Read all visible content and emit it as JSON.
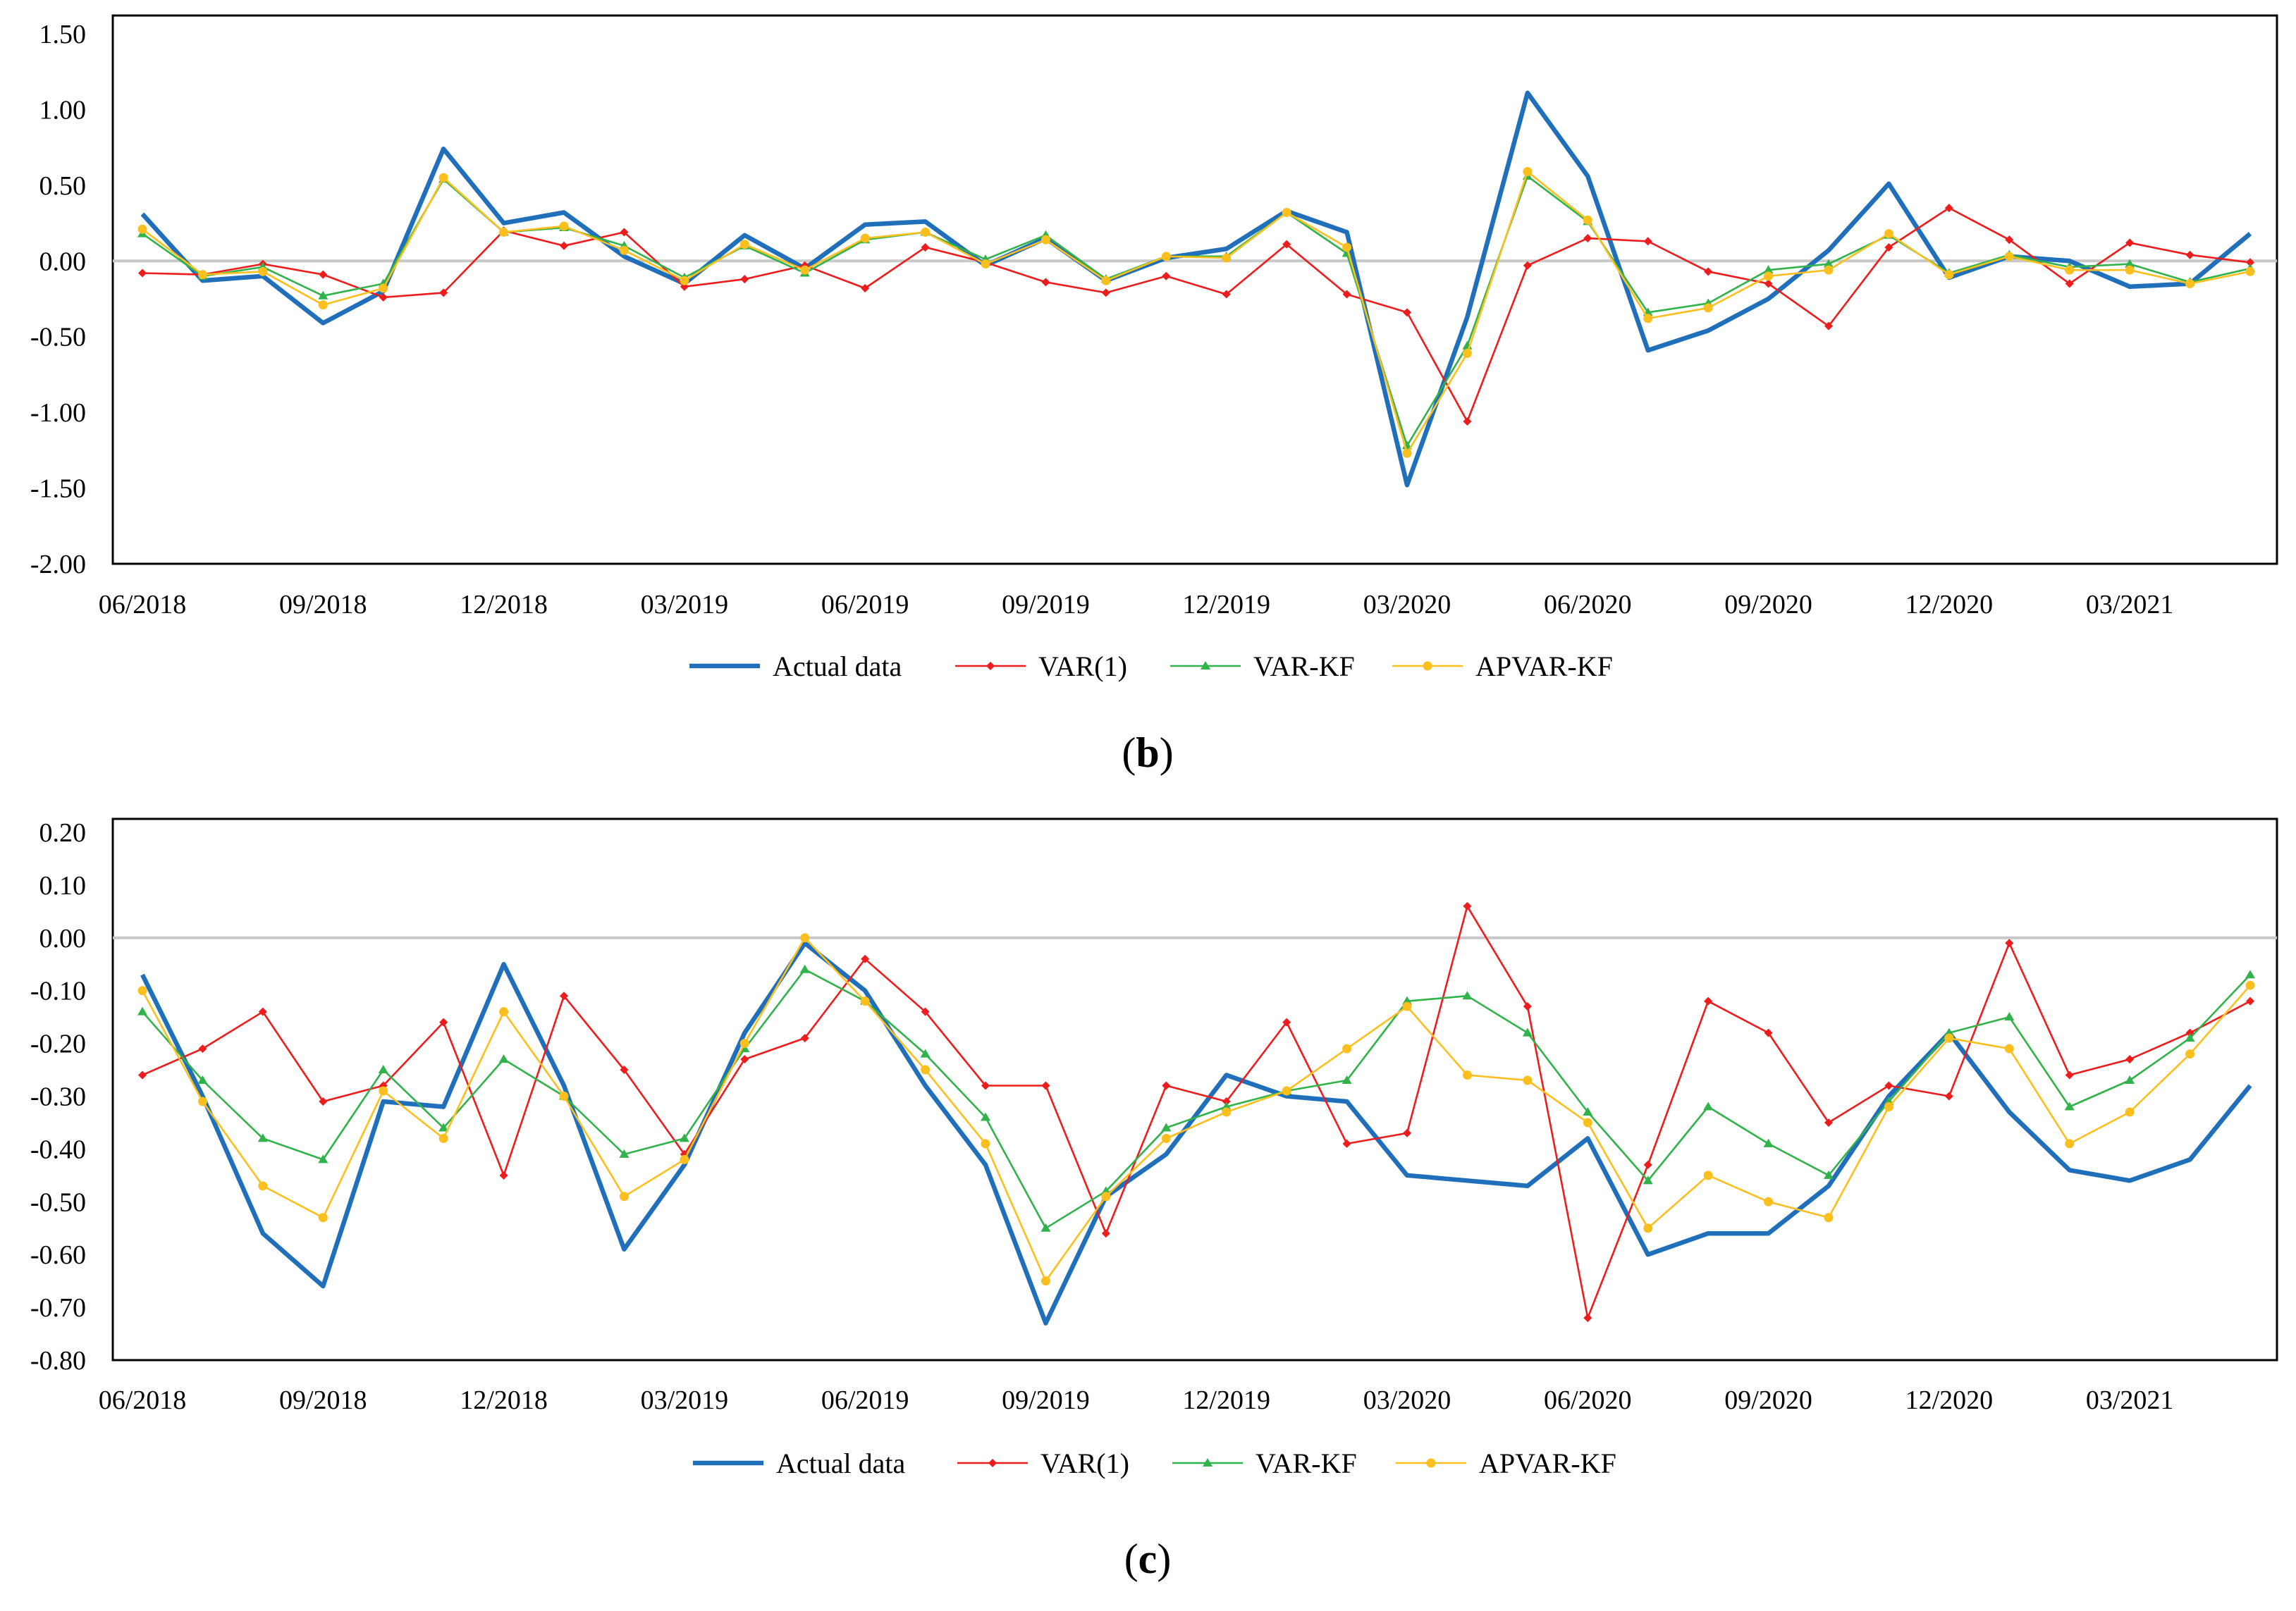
{
  "chart_data": [
    {
      "type": "line",
      "panel_label_open": "(",
      "panel_label_letter": "b",
      "panel_label_close": ")",
      "categories": [
        "06/2018",
        "07/2018",
        "08/2018",
        "09/2018",
        "10/2018",
        "11/2018",
        "12/2018",
        "01/2019",
        "02/2019",
        "03/2019",
        "04/2019",
        "05/2019",
        "06/2019",
        "07/2019",
        "08/2019",
        "09/2019",
        "10/2019",
        "11/2019",
        "12/2019",
        "01/2020",
        "02/2020",
        "03/2020",
        "04/2020",
        "05/2020",
        "06/2020",
        "07/2020",
        "08/2020",
        "09/2020",
        "10/2020",
        "11/2020",
        "12/2020",
        "01/2021",
        "02/2021",
        "03/2021",
        "04/2021",
        "05/2021"
      ],
      "x_tick_labels": [
        "06/2018",
        "09/2018",
        "12/2018",
        "03/2019",
        "06/2019",
        "09/2019",
        "12/2019",
        "03/2020",
        "06/2020",
        "09/2020",
        "12/2020",
        "03/2021"
      ],
      "y_tick_labels": [
        "1.50",
        "1.00",
        "0.50",
        "0.00",
        "-0.50",
        "-1.00",
        "-1.50",
        "-2.00"
      ],
      "ylim": [
        -2.0,
        1.5
      ],
      "legend_position": "bottom",
      "series": [
        {
          "name": "Actual data",
          "color": "#1f6fba",
          "marker": "none",
          "values": [
            0.31,
            -0.13,
            -0.1,
            -0.41,
            -0.2,
            0.74,
            0.25,
            0.32,
            0.03,
            -0.15,
            0.17,
            -0.05,
            0.24,
            0.26,
            -0.03,
            0.15,
            -0.13,
            0.02,
            0.08,
            0.33,
            0.19,
            -1.48,
            -0.37,
            1.11,
            0.56,
            -0.59,
            -0.46,
            -0.25,
            0.07,
            0.51,
            -0.11,
            0.03,
            0.0,
            -0.17,
            -0.15,
            0.18
          ]
        },
        {
          "name": "VAR(1)",
          "color": "#ee1c1c",
          "marker": "diamond",
          "values": [
            -0.08,
            -0.09,
            -0.02,
            -0.09,
            -0.24,
            -0.21,
            0.2,
            0.1,
            0.19,
            -0.17,
            -0.12,
            -0.03,
            -0.18,
            0.09,
            -0.01,
            -0.14,
            -0.21,
            -0.1,
            -0.22,
            0.11,
            -0.22,
            -0.34,
            -1.06,
            -0.03,
            0.15,
            0.13,
            -0.07,
            -0.15,
            -0.43,
            0.09,
            0.35,
            0.14,
            -0.15,
            0.12,
            0.04,
            -0.01
          ]
        },
        {
          "name": "VAR-KF",
          "color": "#2fb34a",
          "marker": "triangle",
          "values": [
            0.18,
            -0.1,
            -0.04,
            -0.23,
            -0.15,
            0.54,
            0.19,
            0.22,
            0.1,
            -0.11,
            0.1,
            -0.08,
            0.14,
            0.19,
            0.01,
            0.17,
            -0.12,
            0.03,
            0.03,
            0.32,
            0.05,
            -1.22,
            -0.56,
            0.56,
            0.26,
            -0.34,
            -0.28,
            -0.06,
            -0.02,
            0.17,
            -0.08,
            0.04,
            -0.04,
            -0.02,
            -0.14,
            -0.05
          ]
        },
        {
          "name": "APVAR-KF",
          "color": "#fcbf1e",
          "marker": "circle",
          "values": [
            0.21,
            -0.09,
            -0.07,
            -0.29,
            -0.18,
            0.55,
            0.19,
            0.23,
            0.07,
            -0.13,
            0.11,
            -0.06,
            0.15,
            0.19,
            -0.02,
            0.14,
            -0.13,
            0.03,
            0.02,
            0.32,
            0.09,
            -1.27,
            -0.61,
            0.59,
            0.27,
            -0.38,
            -0.31,
            -0.1,
            -0.06,
            0.18,
            -0.09,
            0.03,
            -0.06,
            -0.06,
            -0.15,
            -0.07
          ]
        }
      ]
    },
    {
      "type": "line",
      "panel_label_open": "(",
      "panel_label_letter": "c",
      "panel_label_close": ")",
      "categories": [
        "06/2018",
        "07/2018",
        "08/2018",
        "09/2018",
        "10/2018",
        "11/2018",
        "12/2018",
        "01/2019",
        "02/2019",
        "03/2019",
        "04/2019",
        "05/2019",
        "06/2019",
        "07/2019",
        "08/2019",
        "09/2019",
        "10/2019",
        "11/2019",
        "12/2019",
        "01/2020",
        "02/2020",
        "03/2020",
        "04/2020",
        "05/2020",
        "06/2020",
        "07/2020",
        "08/2020",
        "09/2020",
        "10/2020",
        "11/2020",
        "12/2020",
        "01/2021",
        "02/2021",
        "03/2021",
        "04/2021",
        "05/2021"
      ],
      "x_tick_labels": [
        "06/2018",
        "09/2018",
        "12/2018",
        "03/2019",
        "06/2019",
        "09/2019",
        "12/2019",
        "03/2020",
        "06/2020",
        "09/2020",
        "12/2020",
        "03/2021"
      ],
      "y_tick_labels": [
        "0.20",
        "0.10",
        "0.00",
        "-0.10",
        "-0.20",
        "-0.30",
        "-0.40",
        "-0.50",
        "-0.60",
        "-0.70",
        "-0.80"
      ],
      "ylim": [
        -0.8,
        0.2
      ],
      "legend_position": "bottom",
      "series": [
        {
          "name": "Actual data",
          "color": "#1f6fba",
          "marker": "none",
          "values": [
            -0.07,
            -0.3,
            -0.56,
            -0.66,
            -0.31,
            -0.32,
            -0.05,
            -0.28,
            -0.59,
            -0.43,
            -0.18,
            -0.01,
            -0.1,
            -0.28,
            -0.43,
            -0.73,
            -0.49,
            -0.41,
            -0.26,
            -0.3,
            -0.31,
            -0.45,
            -0.46,
            -0.47,
            -0.38,
            -0.6,
            -0.56,
            -0.56,
            -0.47,
            -0.3,
            -0.18,
            -0.33,
            -0.44,
            -0.46,
            -0.42,
            -0.28
          ]
        },
        {
          "name": "VAR(1)",
          "color": "#ee1c1c",
          "marker": "diamond",
          "values": [
            -0.26,
            -0.21,
            -0.14,
            -0.31,
            -0.28,
            -0.16,
            -0.45,
            -0.11,
            -0.25,
            -0.41,
            -0.23,
            -0.19,
            -0.04,
            -0.14,
            -0.28,
            -0.28,
            -0.56,
            -0.28,
            -0.31,
            -0.16,
            -0.39,
            -0.37,
            0.06,
            -0.13,
            -0.72,
            -0.43,
            -0.12,
            -0.18,
            -0.35,
            -0.28,
            -0.3,
            -0.01,
            -0.26,
            -0.23,
            -0.18,
            -0.12
          ]
        },
        {
          "name": "VAR-KF",
          "color": "#2fb34a",
          "marker": "triangle",
          "values": [
            -0.14,
            -0.27,
            -0.38,
            -0.42,
            -0.25,
            -0.36,
            -0.23,
            -0.3,
            -0.41,
            -0.38,
            -0.21,
            -0.06,
            -0.12,
            -0.22,
            -0.34,
            -0.55,
            -0.48,
            -0.36,
            -0.32,
            -0.29,
            -0.27,
            -0.12,
            -0.11,
            -0.18,
            -0.33,
            -0.46,
            -0.32,
            -0.39,
            -0.45,
            -0.31,
            -0.18,
            -0.15,
            -0.32,
            -0.27,
            -0.19,
            -0.07
          ]
        },
        {
          "name": "APVAR-KF",
          "color": "#fcbf1e",
          "marker": "circle",
          "values": [
            -0.1,
            -0.31,
            -0.47,
            -0.53,
            -0.29,
            -0.38,
            -0.14,
            -0.3,
            -0.49,
            -0.42,
            -0.2,
            0.0,
            -0.12,
            -0.25,
            -0.39,
            -0.65,
            -0.49,
            -0.38,
            -0.33,
            -0.29,
            -0.21,
            -0.13,
            -0.26,
            -0.27,
            -0.35,
            -0.55,
            -0.45,
            -0.5,
            -0.53,
            -0.32,
            -0.19,
            -0.21,
            -0.39,
            -0.33,
            -0.22,
            -0.09
          ]
        }
      ]
    }
  ]
}
